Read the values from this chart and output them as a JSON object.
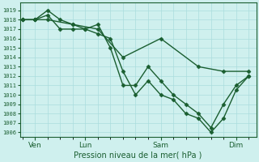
{
  "xlabel": "Pression niveau de la mer( hPa )",
  "bg_color": "#cff0ee",
  "grid_color": "#aadddd",
  "line_color": "#1a5e30",
  "ylim": [
    1005.5,
    1019.8
  ],
  "yticks": [
    1006,
    1007,
    1008,
    1009,
    1010,
    1011,
    1012,
    1013,
    1014,
    1015,
    1016,
    1017,
    1018,
    1019
  ],
  "xlim": [
    -0.1,
    9.3
  ],
  "x_tick_positions": [
    0.5,
    2.5,
    5.5,
    8.5
  ],
  "x_tick_labels": [
    "Ven",
    "Lun",
    "Sam",
    "Dim"
  ],
  "series": [
    {
      "x": [
        0.0,
        0.5,
        1.0,
        1.5,
        2.0,
        2.5,
        3.0,
        3.5,
        4.0,
        4.5,
        5.0,
        5.5,
        6.0,
        6.5,
        7.0,
        7.5,
        8.0,
        8.5,
        9.0
      ],
      "y": [
        1018.0,
        1018.0,
        1019.0,
        1018.0,
        1017.5,
        1017.0,
        1017.5,
        1015.0,
        1011.0,
        1011.0,
        1013.0,
        1011.5,
        1010.0,
        1009.0,
        1008.0,
        1006.5,
        1009.0,
        1011.0,
        1012.0
      ]
    },
    {
      "x": [
        0.0,
        0.5,
        1.0,
        1.5,
        2.0,
        2.5,
        3.0,
        3.5,
        4.0,
        4.5,
        5.0,
        5.5,
        6.0,
        6.5,
        7.0,
        7.5,
        8.0,
        8.5,
        9.0
      ],
      "y": [
        1018.0,
        1018.0,
        1018.5,
        1017.0,
        1017.0,
        1017.0,
        1016.5,
        1016.0,
        1012.5,
        1010.0,
        1011.5,
        1010.0,
        1009.5,
        1008.0,
        1007.5,
        1006.0,
        1007.5,
        1010.5,
        1012.0
      ]
    },
    {
      "x": [
        0.0,
        0.5,
        1.0,
        2.0,
        3.0,
        4.0,
        5.5,
        7.0,
        8.0,
        9.0
      ],
      "y": [
        1018.0,
        1018.0,
        1018.0,
        1017.5,
        1017.0,
        1014.0,
        1016.0,
        1013.0,
        1012.5,
        1012.5
      ]
    }
  ],
  "marker": "D",
  "markersize": 2.5,
  "linewidth": 1.0
}
